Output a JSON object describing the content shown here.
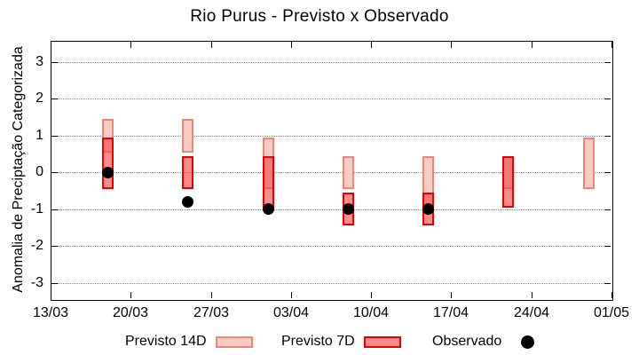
{
  "title": "Rio Purus - Previsto x Observado",
  "axes": {
    "y_label": "Anomalia de Preciptação Categorizada",
    "y_ticks": [
      3,
      2,
      1,
      0,
      -1,
      -2,
      -3
    ],
    "x_tick_labels": [
      "13/03",
      "20/03",
      "27/03",
      "03/04",
      "10/04",
      "17/04",
      "24/04",
      "01/05"
    ]
  },
  "legend": {
    "items": [
      {
        "label": "Previsto 14D",
        "swatch": "box-light"
      },
      {
        "label": "Previsto 7D",
        "swatch": "box-dark"
      },
      {
        "label": "Observado",
        "swatch": "black-dot"
      }
    ]
  },
  "colors": {
    "previsto14_fill": "#f8cbc5",
    "previsto14_border": "#ef8577",
    "previsto7_fill": "rgba(250,70,70,0.62)",
    "previsto7_border": "#e60000",
    "observado": "#000000",
    "grid": "#8a8a8a",
    "axis": "#000000"
  },
  "chart_data": {
    "type": "candlestick",
    "title": "Rio Purus - Previsto x Observado",
    "xlabel": "",
    "ylabel": "Anomalia de Preciptação Categorizada",
    "ylim": [
      -3.44,
      3.58
    ],
    "grid": "horizontal dotted lines at integer y values",
    "legend_position": "below plot",
    "x_axis": {
      "tick_labels": [
        "13/03",
        "20/03",
        "27/03",
        "03/04",
        "10/04",
        "17/04",
        "24/04",
        "01/05"
      ],
      "tick_days": [
        0,
        7,
        14,
        21,
        28,
        35,
        42,
        49
      ],
      "span_days": 49
    },
    "y_ticks": [
      3,
      2,
      1,
      0,
      -1,
      -2,
      -3
    ],
    "points": [
      {
        "date": "18/03",
        "day": 5,
        "previsto_14d": [
          0.55,
          1.45
        ],
        "previsto_7d": [
          -0.45,
          0.95
        ],
        "observado": 0.0
      },
      {
        "date": "25/03",
        "day": 12,
        "previsto_14d": [
          0.55,
          1.45
        ],
        "previsto_7d": [
          -0.45,
          0.45
        ],
        "observado": -0.8
      },
      {
        "date": "01/04",
        "day": 19,
        "previsto_14d": [
          -0.45,
          0.95
        ],
        "previsto_7d": [
          -0.95,
          0.45
        ],
        "observado": -1.0
      },
      {
        "date": "08/04",
        "day": 26,
        "previsto_14d": [
          -0.45,
          0.45
        ],
        "previsto_7d": [
          -1.45,
          -0.55
        ],
        "observado": -1.0
      },
      {
        "date": "15/04",
        "day": 33,
        "previsto_14d": [
          -0.95,
          0.45
        ],
        "previsto_7d": [
          -1.45,
          -0.55
        ],
        "observado": -1.0
      },
      {
        "date": "22/04",
        "day": 40,
        "previsto_14d": [
          -0.45,
          0.45
        ],
        "previsto_7d": [
          -0.95,
          0.45
        ],
        "observado": null
      },
      {
        "date": "29/04",
        "day": 47,
        "previsto_14d": [
          -0.45,
          0.95
        ],
        "previsto_7d": null,
        "observado": null
      }
    ],
    "series": [
      {
        "name": "Previsto 14D",
        "style": "light-pink-range-box"
      },
      {
        "name": "Previsto 7D",
        "style": "red-range-box"
      },
      {
        "name": "Observado",
        "style": "black-dot"
      }
    ]
  }
}
